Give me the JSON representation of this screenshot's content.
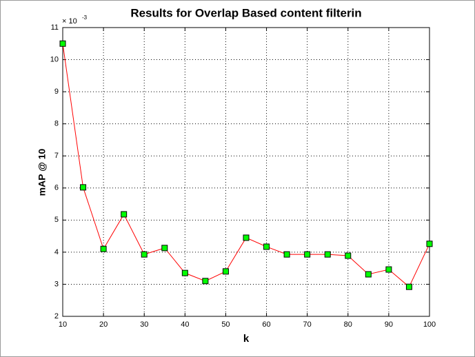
{
  "chart_data": {
    "type": "line",
    "title": "Results for Overlap Based content filterin",
    "xlabel": "k",
    "ylabel": "mAP @ 10",
    "y_multiplier": "× 10",
    "y_multiplier_exponent": "-3",
    "x": [
      10,
      15,
      20,
      25,
      30,
      35,
      40,
      45,
      50,
      55,
      60,
      65,
      70,
      75,
      80,
      85,
      90,
      95,
      100
    ],
    "series": [
      {
        "color": "#ff0000",
        "marker_color": "#00ff00",
        "values": [
          10.5,
          6.02,
          4.1,
          5.18,
          3.93,
          4.13,
          3.35,
          3.1,
          3.4,
          4.45,
          4.17,
          3.93,
          3.93,
          3.93,
          3.89,
          3.31,
          3.46,
          2.92,
          4.26
        ]
      }
    ],
    "xlim": [
      10,
      100
    ],
    "xticks": [
      10,
      20,
      30,
      40,
      50,
      60,
      70,
      80,
      90,
      100
    ],
    "ylim": [
      2,
      11
    ],
    "yticks": [
      2,
      3,
      4,
      5,
      6,
      7,
      8,
      9,
      10,
      11
    ],
    "grid": true
  }
}
